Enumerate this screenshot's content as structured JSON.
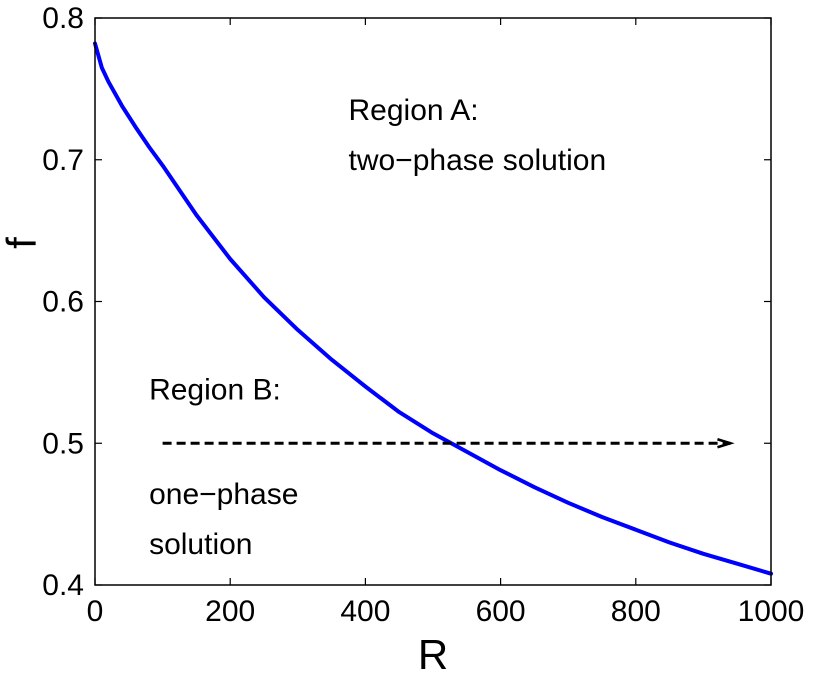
{
  "chart_data": {
    "type": "line",
    "title": "",
    "xlabel": "R",
    "ylabel": "f",
    "xlim": [
      0,
      1000
    ],
    "ylim": [
      0.4,
      0.8
    ],
    "grid": false,
    "xticks": [
      0,
      200,
      400,
      600,
      800,
      1000
    ],
    "xtick_labels": [
      "0",
      "200",
      "400",
      "600",
      "800",
      "1000"
    ],
    "yticks": [
      0.4,
      0.5,
      0.6,
      0.7,
      0.8
    ],
    "ytick_labels": [
      "0.4",
      "0.5",
      "0.6",
      "0.7",
      "0.8"
    ],
    "series": [
      {
        "color": "#0000ff",
        "x": [
          0,
          10,
          20,
          40,
          60,
          80,
          100,
          150,
          200,
          250,
          300,
          350,
          400,
          450,
          500,
          550,
          600,
          650,
          700,
          750,
          800,
          850,
          900,
          950,
          1000
        ],
        "y": [
          0.782,
          0.765,
          0.755,
          0.738,
          0.723,
          0.709,
          0.696,
          0.661,
          0.63,
          0.603,
          0.58,
          0.559,
          0.54,
          0.522,
          0.507,
          0.494,
          0.481,
          0.469,
          0.458,
          0.448,
          0.439,
          0.43,
          0.422,
          0.415,
          0.408
        ]
      }
    ],
    "arrow": {
      "x_start": 100,
      "x_end": 940,
      "y": 0.5,
      "style": "dashed",
      "color": "#000000"
    },
    "annotations": [
      {
        "lines": [
          "Region A:",
          "two−phase solution"
        ],
        "x": 375,
        "y": 0.728
      },
      {
        "lines": [
          "Region B:"
        ],
        "x": 80,
        "y": 0.531
      },
      {
        "lines": [
          "one−phase",
          "solution"
        ],
        "x": 80,
        "y": 0.457
      }
    ]
  }
}
